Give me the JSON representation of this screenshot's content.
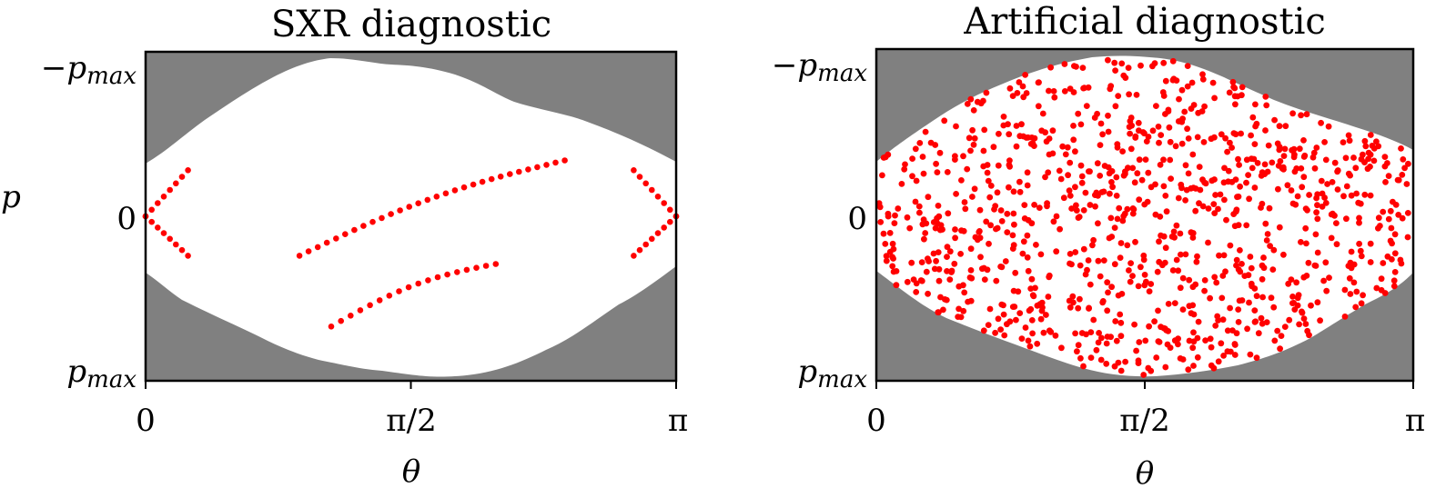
{
  "figure": {
    "panels": [
      {
        "title": "SXR diagnostic",
        "xlabel": "θ",
        "ylabel": "p",
        "xticks": [
          "0",
          "π/2",
          "π"
        ],
        "yticks": [
          "−p_max",
          "0",
          "p_max"
        ]
      },
      {
        "title": "Artificial diagnostic",
        "xlabel": "θ",
        "ylabel": "",
        "xticks": [
          "0",
          "π/2",
          "π"
        ],
        "yticks": [
          "−p_max",
          "0",
          "p_max"
        ]
      }
    ],
    "colors": {
      "outside_region": "#808080",
      "inside_region": "#ffffff",
      "points": "#ff0000",
      "axes": "#000000"
    }
  },
  "chart_data": [
    {
      "type": "scatter",
      "title": "SXR diagnostic",
      "xlabel": "θ",
      "ylabel": "p",
      "xlim": [
        0,
        3.1416
      ],
      "ylim": [
        "-p_max",
        "p_max"
      ],
      "x_ticks": [
        "0",
        "π/2",
        "π"
      ],
      "y_ticks": [
        "−p_max",
        "0",
        "p_max"
      ],
      "y_axis_inverted": true,
      "background": "gray region outside an irregular white lens-shaped valid region",
      "series": [
        {
          "name": "left chord fan (upper)",
          "points_count": 8,
          "x_range_frac": [
            0.0,
            0.08
          ],
          "p_range_frac": [
            0.0,
            -0.28
          ]
        },
        {
          "name": "left chord fan (lower)",
          "points_count": 8,
          "x_range_frac": [
            0.0,
            0.08
          ],
          "p_range_frac": [
            0.0,
            0.24
          ]
        },
        {
          "name": "middle chord line",
          "points_count": 30,
          "x_range_frac": [
            0.29,
            0.79
          ],
          "p_range_frac": [
            0.24,
            -0.34
          ]
        },
        {
          "name": "lower chord line",
          "points_count": 18,
          "x_range_frac": [
            0.35,
            0.66
          ],
          "p_range_frac": [
            0.67,
            0.29
          ]
        },
        {
          "name": "right chord fan (upper)",
          "points_count": 8,
          "x_range_frac": [
            0.92,
            1.0
          ],
          "p_range_frac": [
            -0.28,
            0.0
          ]
        },
        {
          "name": "right chord fan (lower)",
          "points_count": 8,
          "x_range_frac": [
            0.92,
            1.0
          ],
          "p_range_frac": [
            0.24,
            0.0
          ]
        }
      ]
    },
    {
      "type": "scatter",
      "title": "Artificial diagnostic",
      "xlabel": "θ",
      "ylabel": "",
      "xlim": [
        0,
        3.1416
      ],
      "ylim": [
        "-p_max",
        "p_max"
      ],
      "x_ticks": [
        "0",
        "π/2",
        "π"
      ],
      "y_ticks": [
        "−p_max",
        "0",
        "p_max"
      ],
      "y_axis_inverted": true,
      "background": "gray region outside a smooth white lens-shaped valid region",
      "series": [
        {
          "name": "random chords",
          "points_count": 1000,
          "distribution": "uniform random within valid region"
        }
      ]
    }
  ]
}
